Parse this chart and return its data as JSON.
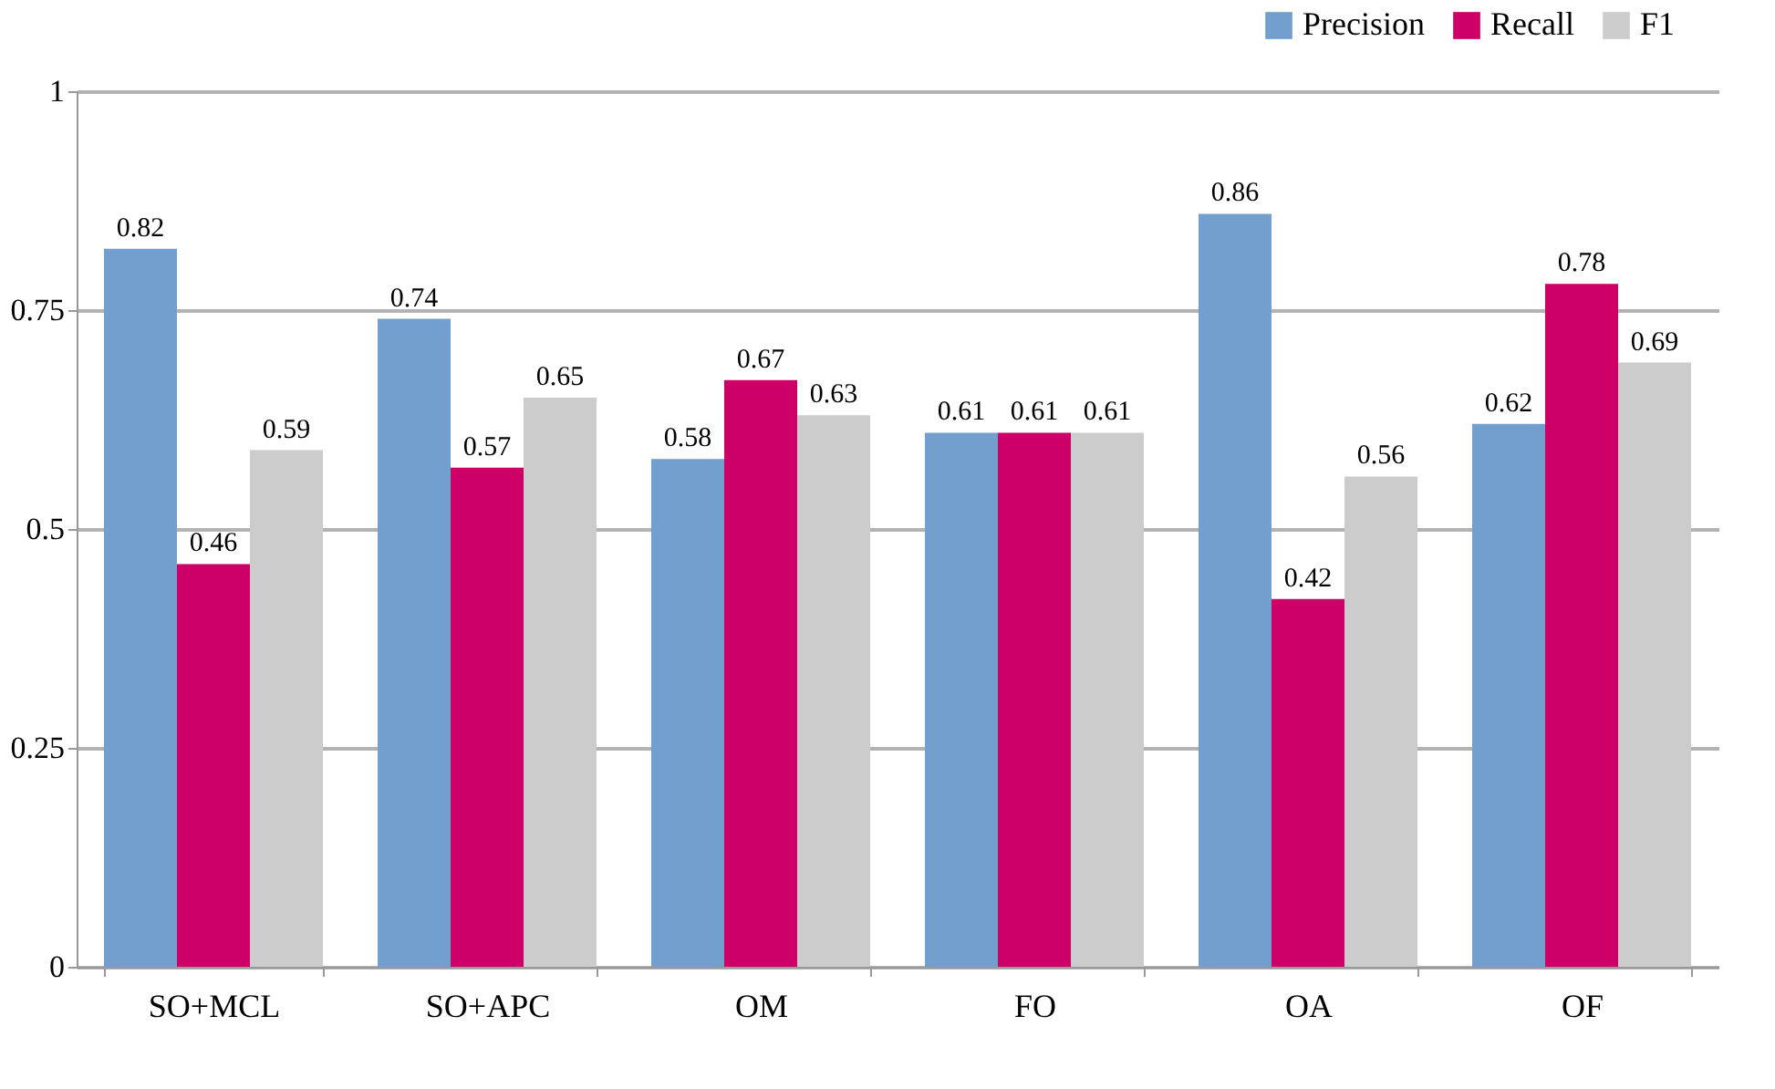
{
  "chart_data": {
    "type": "bar",
    "categories": [
      "SO+MCL",
      "SO+APC",
      "OM",
      "FO",
      "OA",
      "OF"
    ],
    "series": [
      {
        "name": "Precision",
        "color": "#739fce",
        "values": [
          0.82,
          0.74,
          0.58,
          0.61,
          0.86,
          0.62
        ]
      },
      {
        "name": "Recall",
        "color": "#cc0066",
        "values": [
          0.46,
          0.57,
          0.67,
          0.61,
          0.42,
          0.78
        ]
      },
      {
        "name": "F1",
        "color": "#cccccc",
        "values": [
          0.59,
          0.65,
          0.63,
          0.61,
          0.56,
          0.69
        ]
      }
    ],
    "ylim": [
      0,
      1
    ],
    "yticks": [
      0,
      0.25,
      0.5,
      0.75,
      1
    ],
    "grid": "y",
    "legend": "top right",
    "data_labels": true
  }
}
